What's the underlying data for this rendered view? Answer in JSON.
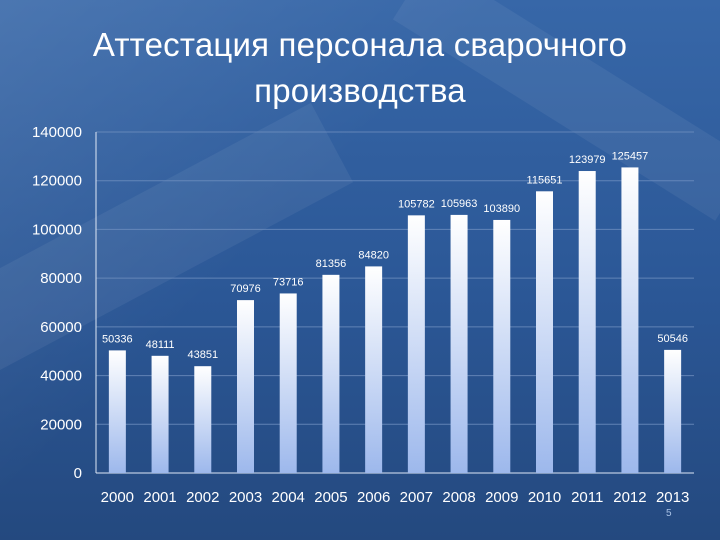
{
  "slide": {
    "title": "Аттестация персонала сварочного производства",
    "page_number": "5"
  },
  "colors": {
    "background": "#2c5a9a",
    "bar_top": "#ffffff",
    "bar_bottom": "#9db8ec",
    "text": "#ffffff",
    "grid": "#6f8fbf"
  },
  "chart_data": {
    "type": "bar",
    "title": "",
    "xlabel": "",
    "ylabel": "",
    "categories": [
      "2000",
      "2001",
      "2002",
      "2003",
      "2004",
      "2005",
      "2006",
      "2007",
      "2008",
      "2009",
      "2010",
      "2011",
      "2012",
      "2013"
    ],
    "values": [
      50336,
      48111,
      43851,
      70976,
      73716,
      81356,
      84820,
      105782,
      105963,
      103890,
      115651,
      123979,
      125457,
      50546
    ],
    "ylim": [
      0,
      140000
    ],
    "yticks": [
      0,
      20000,
      40000,
      60000,
      80000,
      100000,
      120000,
      140000
    ],
    "grid": true,
    "legend": "none",
    "data_labels": true
  }
}
